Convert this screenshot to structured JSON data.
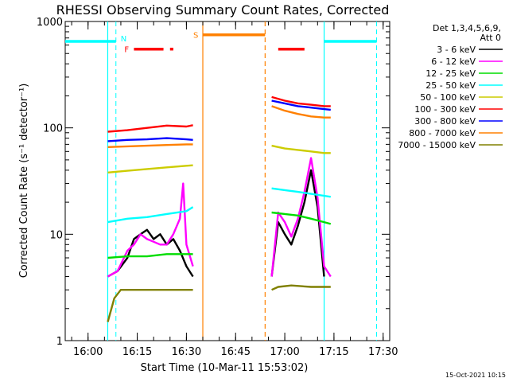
{
  "chart_data": {
    "type": "line",
    "title": "RHESSI Observing Summary Count Rates, Corrected",
    "xlabel": "Start Time (10-Mar-11 15:53:02)",
    "ylabel": "Corrected Count Rate (s⁻¹ detector⁻¹)",
    "y_scale": "log",
    "ylim": [
      1,
      1000
    ],
    "xlim": [
      "15:53:02",
      "17:32:00"
    ],
    "x_ticks": [
      "16:00",
      "16:15",
      "16:30",
      "16:45",
      "17:00",
      "17:15",
      "17:30"
    ],
    "y_ticks": [
      "1",
      "10",
      "100",
      "1000"
    ],
    "timestamp": "15-Oct-2021 10:15",
    "legend": {
      "placement": "outside-right",
      "header": [
        "Det 1,3,4,5,6,9,",
        "Att 0"
      ]
    },
    "series": [
      {
        "name": "3 - 6 keV",
        "color": "#000000",
        "segments": [
          {
            "t": [
              "16:06",
              "16:09",
              "16:12",
              "16:14",
              "16:16",
              "16:18",
              "16:20",
              "16:22",
              "16:24",
              "16:26",
              "16:28",
              "16:30",
              "16:32"
            ],
            "v": [
              4.0,
              4.5,
              6.0,
              9.0,
              10.0,
              11.0,
              9.0,
              10.0,
              8.0,
              9.0,
              7.0,
              5.0,
              4.0
            ]
          },
          {
            "t": [
              "16:56",
              "16:58",
              "17:00",
              "17:02",
              "17:04",
              "17:06",
              "17:08",
              "17:10",
              "17:12"
            ],
            "v": [
              4.0,
              13.0,
              10.0,
              8.0,
              12.0,
              20.0,
              40.0,
              18.0,
              4.0
            ]
          }
        ]
      },
      {
        "name": "6 - 12 keV",
        "color": "#ff00ff",
        "segments": [
          {
            "t": [
              "16:06",
              "16:09",
              "16:12",
              "16:14",
              "16:16",
              "16:18",
              "16:20",
              "16:22",
              "16:24",
              "16:26",
              "16:28",
              "16:29",
              "16:30",
              "16:32"
            ],
            "v": [
              4.0,
              4.5,
              7.0,
              8.0,
              10.0,
              9.0,
              8.5,
              8.0,
              8.0,
              10.0,
              14.0,
              30.0,
              8.0,
              5.0
            ]
          },
          {
            "t": [
              "16:56",
              "16:58",
              "17:00",
              "17:02",
              "17:04",
              "17:06",
              "17:08",
              "17:10",
              "17:12",
              "17:14"
            ],
            "v": [
              4.0,
              16.0,
              13.0,
              9.5,
              14.0,
              25.0,
              52.0,
              22.0,
              5.0,
              4.0
            ]
          }
        ]
      },
      {
        "name": "12 - 25 keV",
        "color": "#00dd00",
        "segments": [
          {
            "t": [
              "16:06",
              "16:12",
              "16:18",
              "16:24",
              "16:30",
              "16:32"
            ],
            "v": [
              6.0,
              6.2,
              6.2,
              6.5,
              6.5,
              6.5
            ]
          },
          {
            "t": [
              "16:56",
              "17:00",
              "17:04",
              "17:08",
              "17:12",
              "17:14"
            ],
            "v": [
              16.0,
              15.5,
              15.0,
              14.0,
              13.0,
              12.5
            ]
          }
        ]
      },
      {
        "name": "25 - 50 keV",
        "color": "#00ffff",
        "segments": [
          {
            "t": [
              "16:06",
              "16:12",
              "16:18",
              "16:24",
              "16:30",
              "16:32"
            ],
            "v": [
              13.0,
              14.0,
              14.5,
              15.5,
              16.5,
              18.0
            ]
          },
          {
            "t": [
              "16:56",
              "17:00",
              "17:04",
              "17:08",
              "17:12",
              "17:14"
            ],
            "v": [
              27.0,
              26.0,
              25.0,
              24.0,
              23.0,
              22.5
            ]
          }
        ]
      },
      {
        "name": "50 - 100 keV",
        "color": "#cccc00",
        "segments": [
          {
            "t": [
              "16:06",
              "16:12",
              "16:18",
              "16:24",
              "16:30",
              "16:32"
            ],
            "v": [
              38.0,
              39.5,
              41.0,
              42.5,
              44.0,
              44.5
            ]
          },
          {
            "t": [
              "16:56",
              "17:00",
              "17:04",
              "17:08",
              "17:12",
              "17:14"
            ],
            "v": [
              68.0,
              64.0,
              62.0,
              60.0,
              58.0,
              58.0
            ]
          }
        ]
      },
      {
        "name": "100 - 300 keV",
        "color": "#ff0000",
        "segments": [
          {
            "t": [
              "16:06",
              "16:12",
              "16:18",
              "16:24",
              "16:30",
              "16:32"
            ],
            "v": [
              92.0,
              95.0,
              100.0,
              105.0,
              103.0,
              106.0
            ]
          },
          {
            "t": [
              "16:56",
              "17:00",
              "17:04",
              "17:08",
              "17:12",
              "17:14"
            ],
            "v": [
              195.0,
              180.0,
              170.0,
              165.0,
              160.0,
              160.0
            ]
          }
        ]
      },
      {
        "name": "300 - 800 keV",
        "color": "#0000ff",
        "segments": [
          {
            "t": [
              "16:06",
              "16:12",
              "16:18",
              "16:24",
              "16:30",
              "16:32"
            ],
            "v": [
              75.0,
              77.0,
              78.0,
              80.0,
              78.0,
              77.0
            ]
          },
          {
            "t": [
              "16:56",
              "17:00",
              "17:04",
              "17:08",
              "17:12",
              "17:14"
            ],
            "v": [
              180.0,
              170.0,
              160.0,
              155.0,
              150.0,
              148.0
            ]
          }
        ]
      },
      {
        "name": "800 - 7000 keV",
        "color": "#ff8000",
        "segments": [
          {
            "t": [
              "16:06",
              "16:12",
              "16:18",
              "16:24",
              "16:30",
              "16:32"
            ],
            "v": [
              66.0,
              67.0,
              68.0,
              69.0,
              70.0,
              70.0
            ]
          },
          {
            "t": [
              "16:56",
              "17:00",
              "17:04",
              "17:08",
              "17:12",
              "17:14"
            ],
            "v": [
              160.0,
              145.0,
              135.0,
              128.0,
              125.0,
              125.0
            ]
          }
        ]
      },
      {
        "name": "7000 - 15000 keV",
        "color": "#808000",
        "segments": [
          {
            "t": [
              "16:06",
              "16:08",
              "16:10",
              "16:12",
              "16:16",
              "16:22",
              "16:28",
              "16:32"
            ],
            "v": [
              1.5,
              2.5,
              3.0,
              3.0,
              3.0,
              3.0,
              3.0,
              3.0
            ]
          },
          {
            "t": [
              "16:56",
              "16:58",
              "17:02",
              "17:08",
              "17:12",
              "17:14"
            ],
            "v": [
              3.0,
              3.2,
              3.3,
              3.2,
              3.2,
              3.2
            ]
          }
        ]
      }
    ],
    "annotations": {
      "night_lines": [
        "16:06",
        "17:12"
      ],
      "saa_lines": [
        "16:35",
        "16:54"
      ],
      "dashed_cyan": [
        "16:08:30",
        "17:28"
      ],
      "top_bars": [
        {
          "label": "N",
          "color": "#00ffff",
          "level": 650,
          "spans": [
            [
              "15:53:02",
              "16:08:30"
            ],
            [
              "17:12",
              "17:28"
            ]
          ]
        },
        {
          "label": "S",
          "color": "#ff8000",
          "level": 750,
          "spans": [
            [
              "16:35",
              "16:54"
            ]
          ]
        },
        {
          "label": "F",
          "color": "#ff0000",
          "level": 550,
          "spans": [
            [
              "16:14",
              "16:23"
            ],
            [
              "16:25",
              "16:26"
            ],
            [
              "16:58",
              "17:06"
            ]
          ]
        }
      ]
    }
  }
}
